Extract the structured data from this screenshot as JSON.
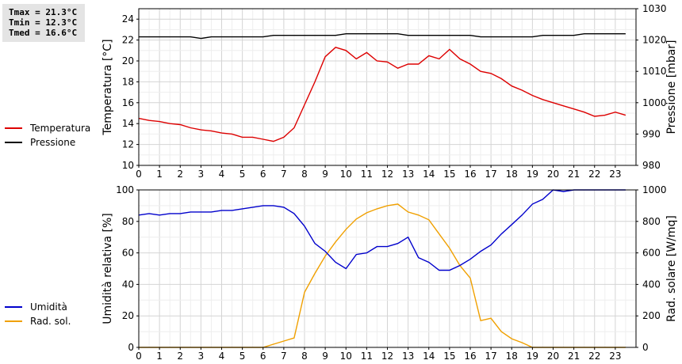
{
  "stats": {
    "tmax": "Tmax = 21.3°C",
    "tmin": "Tmin = 12.3°C",
    "tmed": "Tmed = 16.6°C"
  },
  "chart_data": [
    {
      "type": "line",
      "x": [
        0,
        0.5,
        1,
        1.5,
        2,
        2.5,
        3,
        3.5,
        4,
        4.5,
        5,
        5.5,
        6,
        6.5,
        7,
        7.5,
        8,
        8.5,
        9,
        9.5,
        10,
        10.5,
        11,
        11.5,
        12,
        12.5,
        13,
        13.5,
        14,
        14.5,
        15,
        15.5,
        16,
        16.5,
        17,
        17.5,
        18,
        18.5,
        19,
        19.5,
        20,
        20.5,
        21,
        21.5,
        22,
        22.5,
        23,
        23.5
      ],
      "xlim": [
        0,
        24
      ],
      "x_ticks": [
        0,
        1,
        2,
        3,
        4,
        5,
        6,
        7,
        8,
        9,
        10,
        11,
        12,
        13,
        14,
        15,
        16,
        17,
        18,
        19,
        20,
        21,
        22,
        23
      ],
      "grid": true,
      "series": [
        {
          "name": "Temperatura",
          "axis": "left",
          "color": "#dd0000",
          "values": [
            14.5,
            14.3,
            14.2,
            14.0,
            13.9,
            13.6,
            13.4,
            13.3,
            13.1,
            13.0,
            12.7,
            12.7,
            12.5,
            12.3,
            12.7,
            13.6,
            15.8,
            18.0,
            20.4,
            21.3,
            21.0,
            20.2,
            20.8,
            20.0,
            19.9,
            19.3,
            19.7,
            19.7,
            20.5,
            20.2,
            21.1,
            20.2,
            19.7,
            19.0,
            18.8,
            18.3,
            17.6,
            17.2,
            16.7,
            16.3,
            16.0,
            15.7,
            15.4,
            15.1,
            14.7,
            14.8,
            15.1,
            14.8
          ]
        },
        {
          "name": "Pressione",
          "axis": "right",
          "color": "#000000",
          "values": [
            1021,
            1021,
            1021,
            1021,
            1021,
            1021,
            1020.5,
            1021,
            1021,
            1021,
            1021,
            1021,
            1021,
            1021.5,
            1021.5,
            1021.5,
            1021.5,
            1021.5,
            1021.5,
            1021.5,
            1022,
            1022,
            1022,
            1022,
            1022,
            1022,
            1021.5,
            1021.5,
            1021.5,
            1021.5,
            1021.5,
            1021.5,
            1021.5,
            1021,
            1021,
            1021,
            1021,
            1021,
            1021,
            1021.5,
            1021.5,
            1021.5,
            1021.5,
            1022,
            1022,
            1022,
            1022,
            1022
          ]
        }
      ],
      "ylabel": "Temperatura [°C]",
      "ylim": [
        10,
        25
      ],
      "y_ticks": [
        10,
        12,
        14,
        16,
        18,
        20,
        22,
        24
      ],
      "y2label": "Pressione [mbar]",
      "y2lim": [
        980,
        1030
      ],
      "y2_ticks": [
        980,
        990,
        1000,
        1010,
        1020,
        1030
      ]
    },
    {
      "type": "line",
      "x": [
        0,
        0.5,
        1,
        1.5,
        2,
        2.5,
        3,
        3.5,
        4,
        4.5,
        5,
        5.5,
        6,
        6.5,
        7,
        7.5,
        8,
        8.5,
        9,
        9.5,
        10,
        10.5,
        11,
        11.5,
        12,
        12.5,
        13,
        13.5,
        14,
        14.5,
        15,
        15.5,
        16,
        16.5,
        17,
        17.5,
        18,
        18.5,
        19,
        19.5,
        20,
        20.5,
        21,
        21.5,
        22,
        22.5,
        23,
        23.5
      ],
      "xlim": [
        0,
        24
      ],
      "x_ticks": [
        0,
        1,
        2,
        3,
        4,
        5,
        6,
        7,
        8,
        9,
        10,
        11,
        12,
        13,
        14,
        15,
        16,
        17,
        18,
        19,
        20,
        21,
        22,
        23
      ],
      "grid": true,
      "series": [
        {
          "name": "Umidità",
          "axis": "left",
          "color": "#0000cc",
          "values": [
            84,
            85,
            84,
            85,
            85,
            86,
            86,
            86,
            87,
            87,
            88,
            89,
            90,
            90,
            89,
            85,
            77,
            66,
            61,
            54,
            50,
            59,
            60,
            64,
            64,
            66,
            70,
            57,
            54,
            49,
            49,
            52,
            56,
            61,
            65,
            72,
            78,
            84,
            91,
            94,
            100,
            99,
            100,
            100,
            100,
            100,
            100,
            100
          ]
        },
        {
          "name": "Rad. sol.",
          "axis": "right",
          "color": "#f0a000",
          "values": [
            0,
            0,
            0,
            0,
            0,
            0,
            0,
            0,
            0,
            0,
            0,
            0,
            0,
            20,
            40,
            60,
            350,
            470,
            580,
            670,
            750,
            815,
            855,
            880,
            900,
            910,
            860,
            840,
            810,
            720,
            630,
            520,
            440,
            170,
            185,
            100,
            55,
            30,
            0,
            0,
            0,
            0,
            0,
            0,
            0,
            0,
            0,
            0
          ]
        }
      ],
      "ylabel": "Umidità relativa [%]",
      "ylim": [
        0,
        100
      ],
      "y_ticks": [
        0,
        20,
        40,
        60,
        80,
        100
      ],
      "y2label": "Rad. solare [W/mq]",
      "y2lim": [
        0,
        1000
      ],
      "y2_ticks": [
        0,
        200,
        400,
        600,
        800,
        1000
      ]
    }
  ]
}
